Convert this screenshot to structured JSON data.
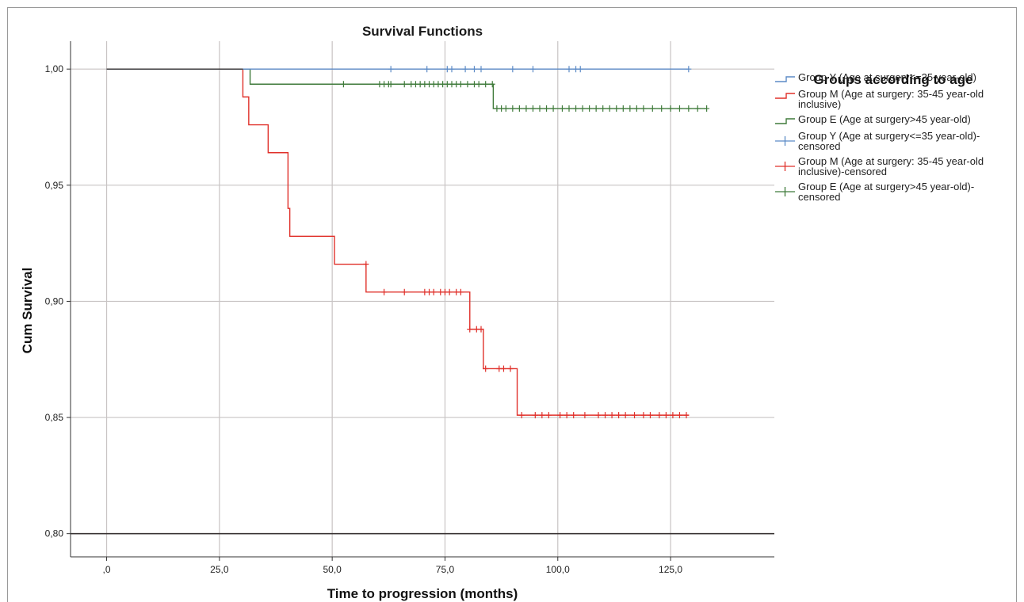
{
  "chart_data": {
    "type": "line",
    "subtype": "kaplan-meier step",
    "title": "Survival Functions",
    "xlabel": "Time to progression (months)",
    "ylabel": "Cum Survival",
    "xlim": [
      -8,
      148
    ],
    "ylim": [
      0.79,
      1.012
    ],
    "x_ticks": [
      0,
      25,
      50,
      75,
      100,
      125
    ],
    "x_tick_labels": [
      ",0",
      "25,0",
      "50,0",
      "75,0",
      "100,0",
      "125,0"
    ],
    "y_ticks": [
      0.8,
      0.85,
      0.9,
      0.95,
      1.0
    ],
    "y_tick_labels": [
      "0,80",
      "0,85",
      "0,90",
      "0,95",
      "1,00"
    ],
    "grid": true,
    "legend_title": "Groups according to age",
    "legend_position": "right",
    "legend": [
      {
        "lines": [
          "Group Y (Age at surgery<=35 year-old)"
        ],
        "color": "#5b8ac6",
        "marker": "step"
      },
      {
        "lines": [
          "Group M (Age at surgery: 35-45 year-old",
          "inclusive)"
        ],
        "color": "#e0302a",
        "marker": "step"
      },
      {
        "lines": [
          "Group E (Age at surgery>45 year-old)"
        ],
        "color": "#3f7a3a",
        "marker": "step"
      },
      {
        "lines": [
          "Group Y (Age at surgery<=35 year-old)-",
          "censored"
        ],
        "color": "#5b8ac6",
        "marker": "plus"
      },
      {
        "lines": [
          "Group M (Age at surgery: 35-45 year-old",
          "inclusive)-censored"
        ],
        "color": "#e0302a",
        "marker": "plus"
      },
      {
        "lines": [
          "Group E (Age at surgery>45 year-old)-",
          "censored"
        ],
        "color": "#3f7a3a",
        "marker": "plus"
      }
    ],
    "series": [
      {
        "name": "Group Y (Age at surgery<=35 year-old)",
        "color": "#5b8ac6",
        "steps": [
          [
            0,
            1.0
          ],
          [
            129,
            1.0
          ]
        ],
        "censored": [
          [
            63,
            1.0
          ],
          [
            71,
            1.0
          ],
          [
            75.5,
            1.0
          ],
          [
            76.5,
            1.0
          ],
          [
            79.5,
            1.0
          ],
          [
            81.5,
            1.0
          ],
          [
            83,
            1.0
          ],
          [
            90,
            1.0
          ],
          [
            94.5,
            1.0
          ],
          [
            102.5,
            1.0
          ],
          [
            104,
            1.0
          ],
          [
            105,
            1.0
          ],
          [
            129,
            1.0
          ]
        ]
      },
      {
        "name": "Group M (Age at surgery: 35-45 year-old inclusive)",
        "color": "#e0302a",
        "steps": [
          [
            0,
            1.0
          ],
          [
            30.2,
            0.988
          ],
          [
            31.5,
            0.976
          ],
          [
            35.8,
            0.964
          ],
          [
            40.2,
            0.94
          ],
          [
            40.6,
            0.928
          ],
          [
            50.5,
            0.916
          ],
          [
            57.5,
            0.904
          ],
          [
            80.5,
            0.888
          ],
          [
            83.5,
            0.871
          ],
          [
            91,
            0.851
          ],
          [
            129,
            0.851
          ]
        ],
        "censored": [
          [
            57.5,
            0.916
          ],
          [
            61.5,
            0.904
          ],
          [
            66,
            0.904
          ],
          [
            70.5,
            0.904
          ],
          [
            71.5,
            0.904
          ],
          [
            72.5,
            0.904
          ],
          [
            74,
            0.904
          ],
          [
            75,
            0.904
          ],
          [
            76,
            0.904
          ],
          [
            77.5,
            0.904
          ],
          [
            78.5,
            0.904
          ],
          [
            80.5,
            0.888
          ],
          [
            82,
            0.888
          ],
          [
            83,
            0.888
          ],
          [
            84,
            0.871
          ],
          [
            87,
            0.871
          ],
          [
            88,
            0.871
          ],
          [
            89.5,
            0.871
          ],
          [
            92,
            0.851
          ],
          [
            95,
            0.851
          ],
          [
            96.5,
            0.851
          ],
          [
            98,
            0.851
          ],
          [
            100.5,
            0.851
          ],
          [
            102,
            0.851
          ],
          [
            103.5,
            0.851
          ],
          [
            106,
            0.851
          ],
          [
            109,
            0.851
          ],
          [
            110.5,
            0.851
          ],
          [
            112,
            0.851
          ],
          [
            113.5,
            0.851
          ],
          [
            115,
            0.851
          ],
          [
            117,
            0.851
          ],
          [
            119,
            0.851
          ],
          [
            120.5,
            0.851
          ],
          [
            122.5,
            0.851
          ],
          [
            124,
            0.851
          ],
          [
            125.5,
            0.851
          ],
          [
            127,
            0.851
          ],
          [
            128.5,
            0.851
          ]
        ]
      },
      {
        "name": "Group E (Age at surgery>45 year-old)",
        "color": "#3f7a3a",
        "steps": [
          [
            0,
            1.0
          ],
          [
            31.8,
            0.9935
          ],
          [
            85.7,
            0.983
          ],
          [
            133,
            0.983
          ]
        ],
        "censored": [
          [
            52.5,
            0.9935
          ],
          [
            60.5,
            0.9935
          ],
          [
            61.5,
            0.9935
          ],
          [
            62.5,
            0.9935
          ],
          [
            63,
            0.9935
          ],
          [
            66,
            0.9935
          ],
          [
            67.5,
            0.9935
          ],
          [
            68.5,
            0.9935
          ],
          [
            69.5,
            0.9935
          ],
          [
            70.5,
            0.9935
          ],
          [
            71.5,
            0.9935
          ],
          [
            72.5,
            0.9935
          ],
          [
            73.5,
            0.9935
          ],
          [
            74.5,
            0.9935
          ],
          [
            75.5,
            0.9935
          ],
          [
            76.5,
            0.9935
          ],
          [
            77.5,
            0.9935
          ],
          [
            78.5,
            0.9935
          ],
          [
            80,
            0.9935
          ],
          [
            81.5,
            0.9935
          ],
          [
            82.5,
            0.9935
          ],
          [
            84,
            0.9935
          ],
          [
            85.5,
            0.9935
          ],
          [
            86.5,
            0.983
          ],
          [
            87.5,
            0.983
          ],
          [
            88.5,
            0.983
          ],
          [
            90,
            0.983
          ],
          [
            91.5,
            0.983
          ],
          [
            93,
            0.983
          ],
          [
            94.5,
            0.983
          ],
          [
            96,
            0.983
          ],
          [
            97.5,
            0.983
          ],
          [
            99,
            0.983
          ],
          [
            101,
            0.983
          ],
          [
            102.5,
            0.983
          ],
          [
            104,
            0.983
          ],
          [
            105.5,
            0.983
          ],
          [
            107,
            0.983
          ],
          [
            108.5,
            0.983
          ],
          [
            110,
            0.983
          ],
          [
            111.5,
            0.983
          ],
          [
            113,
            0.983
          ],
          [
            114.5,
            0.983
          ],
          [
            116,
            0.983
          ],
          [
            117.5,
            0.983
          ],
          [
            119,
            0.983
          ],
          [
            121,
            0.983
          ],
          [
            123,
            0.983
          ],
          [
            125,
            0.983
          ],
          [
            127,
            0.983
          ],
          [
            129,
            0.983
          ],
          [
            131,
            0.983
          ],
          [
            133,
            0.983
          ]
        ]
      }
    ]
  }
}
